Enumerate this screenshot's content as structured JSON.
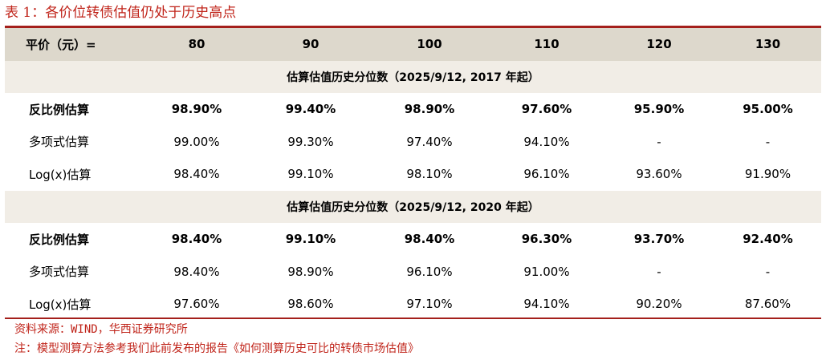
{
  "title": "表 1：各价位转债估值仍处于历史高点",
  "header": {
    "label": "平价（元）=",
    "cols": [
      "80",
      "90",
      "100",
      "110",
      "120",
      "130"
    ]
  },
  "sections": [
    {
      "title": "估算估值历史分位数（2025/9/12, 2017 年起）",
      "rows": [
        {
          "label": "反比例估算",
          "values": [
            "98.90%",
            "99.40%",
            "98.90%",
            "97.60%",
            "95.90%",
            "95.00%"
          ]
        },
        {
          "label": "多项式估算",
          "values": [
            "99.00%",
            "99.30%",
            "97.40%",
            "94.10%",
            "-",
            "-"
          ]
        },
        {
          "label": "Log(x)估算",
          "values": [
            "98.40%",
            "99.10%",
            "98.10%",
            "96.10%",
            "93.60%",
            "91.90%"
          ]
        }
      ]
    },
    {
      "title": "估算估值历史分位数（2025/9/12, 2020 年起）",
      "rows": [
        {
          "label": "反比例估算",
          "values": [
            "98.40%",
            "99.10%",
            "98.40%",
            "96.30%",
            "93.70%",
            "92.40%"
          ]
        },
        {
          "label": "多项式估算",
          "values": [
            "98.40%",
            "98.90%",
            "96.10%",
            "91.00%",
            "-",
            "-"
          ]
        },
        {
          "label": "Log(x)估算",
          "values": [
            "97.60%",
            "98.60%",
            "97.10%",
            "94.10%",
            "90.20%",
            "87.60%"
          ]
        }
      ]
    }
  ],
  "notes": {
    "source": "资料来源：WIND，华西证券研究所",
    "note": "注：模型测算方法参考我们此前发布的报告《如何测算历史可比的转债市场估值》"
  },
  "colors": {
    "accent": "#c0241a",
    "rule": "#a41f1b",
    "header_bg": "#ddd8cc",
    "section_bg": "#f1ede6"
  }
}
